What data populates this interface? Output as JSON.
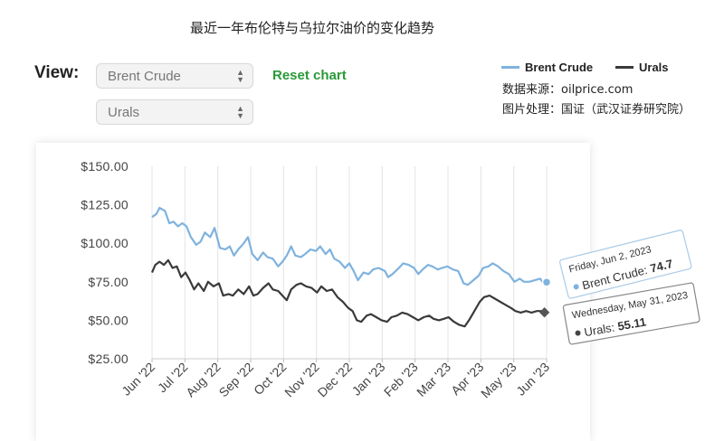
{
  "title": "最近一年布伦特与乌拉尔油价的变化趋势",
  "controls": {
    "view_label": "View:",
    "select_primary": "Brent Crude",
    "select_secondary": "Urals",
    "reset_label": "Reset chart"
  },
  "source_text": "数据来源：oilprice.com",
  "processing_text": "图片处理：国证（武汉证券研究院）",
  "colors": {
    "brent": "#7fb2de",
    "urals": "#3a3a3a",
    "reset": "#2a9a38"
  },
  "tooltips": {
    "brent": {
      "date": "Friday, Jun 2, 2023",
      "series": "Brent Crude",
      "value_text": "74.7"
    },
    "urals": {
      "date": "Wednesday, May 31, 2023",
      "series": "Urals",
      "value_text": "55.11"
    }
  },
  "chart_data": {
    "type": "line",
    "y_ticks": [
      "$150.00",
      "$125.00",
      "$100.00",
      "$75.00",
      "$50.00",
      "$25.00"
    ],
    "x_ticks": [
      "Jun '22",
      "Jul '22",
      "Aug '22",
      "Sep '22",
      "Oct '22",
      "Nov '22",
      "Dec '22",
      "Jan '23",
      "Feb '23",
      "Mar '23",
      "Apr '23",
      "May '23",
      "Jun '23"
    ],
    "ylim": [
      25,
      150
    ],
    "x_range": [
      "2022-06-01",
      "2023-06-02"
    ],
    "legend_position": "top-right",
    "grid": "vertical",
    "series": [
      {
        "name": "Brent Crude",
        "points": [
          [
            "2022-06-01",
            117
          ],
          [
            "2022-06-05",
            119
          ],
          [
            "2022-06-08",
            123
          ],
          [
            "2022-06-13",
            121
          ],
          [
            "2022-06-17",
            113
          ],
          [
            "2022-06-21",
            114
          ],
          [
            "2022-06-25",
            111
          ],
          [
            "2022-06-29",
            113
          ],
          [
            "2022-07-03",
            111
          ],
          [
            "2022-07-07",
            104
          ],
          [
            "2022-07-12",
            99
          ],
          [
            "2022-07-16",
            101
          ],
          [
            "2022-07-20",
            107
          ],
          [
            "2022-07-25",
            104
          ],
          [
            "2022-07-29",
            110
          ],
          [
            "2022-08-03",
            97
          ],
          [
            "2022-08-08",
            96
          ],
          [
            "2022-08-12",
            98
          ],
          [
            "2022-08-16",
            92
          ],
          [
            "2022-08-20",
            96
          ],
          [
            "2022-08-25",
            100
          ],
          [
            "2022-08-29",
            104
          ],
          [
            "2022-09-02",
            93
          ],
          [
            "2022-09-07",
            89
          ],
          [
            "2022-09-12",
            94
          ],
          [
            "2022-09-16",
            91
          ],
          [
            "2022-09-21",
            90
          ],
          [
            "2022-09-26",
            85
          ],
          [
            "2022-09-30",
            88
          ],
          [
            "2022-10-04",
            92
          ],
          [
            "2022-10-08",
            98
          ],
          [
            "2022-10-12",
            92
          ],
          [
            "2022-10-17",
            91
          ],
          [
            "2022-10-21",
            93
          ],
          [
            "2022-10-26",
            96
          ],
          [
            "2022-10-31",
            95
          ],
          [
            "2022-11-04",
            98
          ],
          [
            "2022-11-09",
            93
          ],
          [
            "2022-11-13",
            96
          ],
          [
            "2022-11-17",
            90
          ],
          [
            "2022-11-22",
            88
          ],
          [
            "2022-11-27",
            84
          ],
          [
            "2022-12-01",
            87
          ],
          [
            "2022-12-05",
            82
          ],
          [
            "2022-12-09",
            76
          ],
          [
            "2022-12-14",
            81
          ],
          [
            "2022-12-19",
            80
          ],
          [
            "2022-12-23",
            83
          ],
          [
            "2022-12-28",
            84
          ],
          [
            "2023-01-03",
            82
          ],
          [
            "2023-01-06",
            78
          ],
          [
            "2023-01-10",
            80
          ],
          [
            "2023-01-16",
            84
          ],
          [
            "2023-01-20",
            87
          ],
          [
            "2023-01-25",
            86
          ],
          [
            "2023-01-30",
            84
          ],
          [
            "2023-02-03",
            80
          ],
          [
            "2023-02-07",
            83
          ],
          [
            "2023-02-12",
            86
          ],
          [
            "2023-02-16",
            85
          ],
          [
            "2023-02-21",
            83
          ],
          [
            "2023-02-25",
            84
          ],
          [
            "2023-03-02",
            85
          ],
          [
            "2023-03-07",
            83
          ],
          [
            "2023-03-12",
            82
          ],
          [
            "2023-03-17",
            74
          ],
          [
            "2023-03-21",
            73
          ],
          [
            "2023-03-26",
            76
          ],
          [
            "2023-03-31",
            79
          ],
          [
            "2023-04-04",
            84
          ],
          [
            "2023-04-09",
            85
          ],
          [
            "2023-04-13",
            87
          ],
          [
            "2023-04-18",
            85
          ],
          [
            "2023-04-23",
            82
          ],
          [
            "2023-04-28",
            80
          ],
          [
            "2023-05-03",
            75
          ],
          [
            "2023-05-08",
            77
          ],
          [
            "2023-05-12",
            75
          ],
          [
            "2023-05-17",
            75
          ],
          [
            "2023-05-22",
            76
          ],
          [
            "2023-05-27",
            77
          ],
          [
            "2023-05-31",
            73
          ],
          [
            "2023-06-02",
            74.7
          ]
        ]
      },
      {
        "name": "Urals",
        "points": [
          [
            "2022-06-01",
            81
          ],
          [
            "2022-06-04",
            86
          ],
          [
            "2022-06-08",
            88
          ],
          [
            "2022-06-12",
            86
          ],
          [
            "2022-06-16",
            89
          ],
          [
            "2022-06-20",
            84
          ],
          [
            "2022-06-24",
            85
          ],
          [
            "2022-06-28",
            78
          ],
          [
            "2022-07-02",
            81
          ],
          [
            "2022-07-06",
            76
          ],
          [
            "2022-07-10",
            70
          ],
          [
            "2022-07-14",
            74
          ],
          [
            "2022-07-19",
            69
          ],
          [
            "2022-07-23",
            75
          ],
          [
            "2022-07-28",
            72
          ],
          [
            "2022-08-02",
            74
          ],
          [
            "2022-08-06",
            66
          ],
          [
            "2022-08-11",
            67
          ],
          [
            "2022-08-15",
            66
          ],
          [
            "2022-08-20",
            70
          ],
          [
            "2022-08-25",
            67
          ],
          [
            "2022-08-30",
            72
          ],
          [
            "2022-09-03",
            66
          ],
          [
            "2022-09-07",
            67
          ],
          [
            "2022-09-12",
            71
          ],
          [
            "2022-09-17",
            74
          ],
          [
            "2022-09-21",
            70
          ],
          [
            "2022-09-26",
            69
          ],
          [
            "2022-09-30",
            66
          ],
          [
            "2022-10-04",
            63
          ],
          [
            "2022-10-08",
            70
          ],
          [
            "2022-10-13",
            73
          ],
          [
            "2022-10-17",
            74
          ],
          [
            "2022-10-22",
            72
          ],
          [
            "2022-10-27",
            71
          ],
          [
            "2022-11-01",
            68
          ],
          [
            "2022-11-05",
            72
          ],
          [
            "2022-11-10",
            69
          ],
          [
            "2022-11-15",
            70
          ],
          [
            "2022-11-20",
            65
          ],
          [
            "2022-11-25",
            62
          ],
          [
            "2022-11-30",
            58
          ],
          [
            "2022-12-04",
            56
          ],
          [
            "2022-12-08",
            50
          ],
          [
            "2022-12-12",
            49
          ],
          [
            "2022-12-17",
            53
          ],
          [
            "2022-12-21",
            54
          ],
          [
            "2022-12-26",
            52
          ],
          [
            "2022-12-31",
            50
          ],
          [
            "2023-01-05",
            49
          ],
          [
            "2023-01-09",
            52
          ],
          [
            "2023-01-14",
            53
          ],
          [
            "2023-01-19",
            55
          ],
          [
            "2023-01-24",
            54
          ],
          [
            "2023-01-29",
            52
          ],
          [
            "2023-02-03",
            50
          ],
          [
            "2023-02-08",
            52
          ],
          [
            "2023-02-13",
            53
          ],
          [
            "2023-02-17",
            51
          ],
          [
            "2023-02-22",
            50
          ],
          [
            "2023-02-27",
            51
          ],
          [
            "2023-03-03",
            52
          ],
          [
            "2023-03-08",
            49
          ],
          [
            "2023-03-13",
            47
          ],
          [
            "2023-03-18",
            46
          ],
          [
            "2023-03-22",
            50
          ],
          [
            "2023-03-27",
            56
          ],
          [
            "2023-04-01",
            62
          ],
          [
            "2023-04-05",
            65
          ],
          [
            "2023-04-10",
            66
          ],
          [
            "2023-04-15",
            64
          ],
          [
            "2023-04-20",
            62
          ],
          [
            "2023-04-25",
            60
          ],
          [
            "2023-04-30",
            58
          ],
          [
            "2023-05-04",
            56
          ],
          [
            "2023-05-09",
            55
          ],
          [
            "2023-05-14",
            56
          ],
          [
            "2023-05-19",
            55
          ],
          [
            "2023-05-24",
            56
          ],
          [
            "2023-05-28",
            56
          ],
          [
            "2023-05-31",
            55.11
          ]
        ]
      }
    ]
  }
}
